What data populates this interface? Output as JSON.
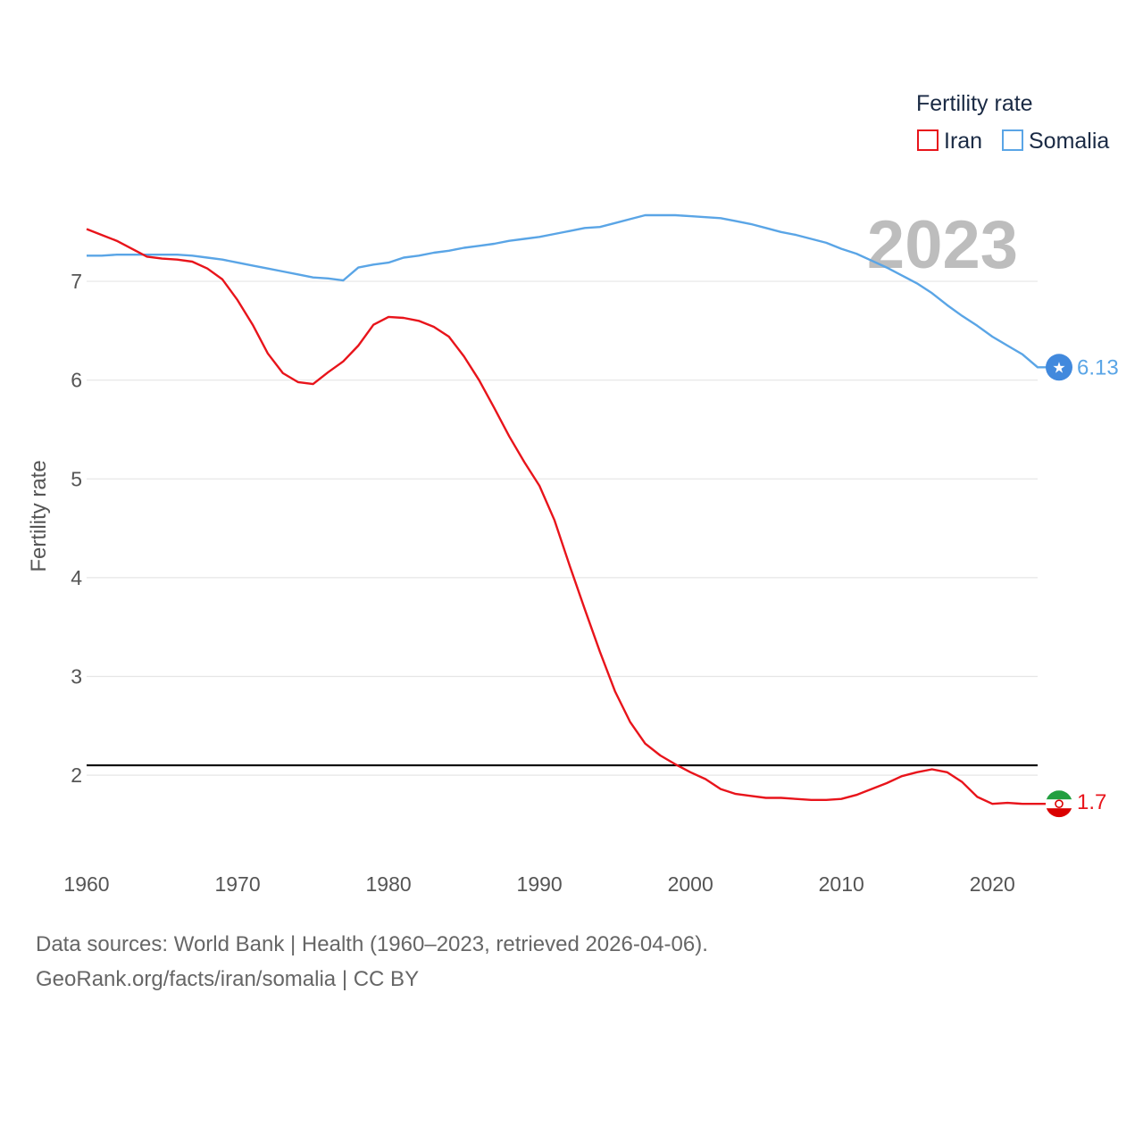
{
  "chart_data": {
    "type": "line",
    "title": "Fertility rate",
    "ylabel": "Fertility rate",
    "xlabel": "",
    "year_label": "2023",
    "xlim": [
      1960,
      2023
    ],
    "ylim": [
      1.35,
      7.95
    ],
    "x_ticks": [
      1960,
      1970,
      1980,
      1990,
      2000,
      2010,
      2020
    ],
    "y_ticks": [
      2,
      3,
      4,
      5,
      6,
      7
    ],
    "reference_line": 2.1,
    "x": [
      1960,
      1961,
      1962,
      1963,
      1964,
      1965,
      1966,
      1967,
      1968,
      1969,
      1970,
      1971,
      1972,
      1973,
      1974,
      1975,
      1976,
      1977,
      1978,
      1979,
      1980,
      1981,
      1982,
      1983,
      1984,
      1985,
      1986,
      1987,
      1988,
      1989,
      1990,
      1991,
      1992,
      1993,
      1994,
      1995,
      1996,
      1997,
      1998,
      1999,
      2000,
      2001,
      2002,
      2003,
      2004,
      2005,
      2006,
      2007,
      2008,
      2009,
      2010,
      2011,
      2012,
      2013,
      2014,
      2015,
      2016,
      2017,
      2018,
      2019,
      2020,
      2021,
      2022,
      2023
    ],
    "series": [
      {
        "name": "Iran",
        "color": "#e8141b",
        "end_label": "1.7",
        "values": [
          7.53,
          7.47,
          7.41,
          7.33,
          7.25,
          7.23,
          7.22,
          7.2,
          7.13,
          7.02,
          6.81,
          6.56,
          6.27,
          6.07,
          5.98,
          5.96,
          6.08,
          6.19,
          6.35,
          6.56,
          6.64,
          6.63,
          6.6,
          6.54,
          6.44,
          6.24,
          6.0,
          5.72,
          5.43,
          5.17,
          4.93,
          4.58,
          4.12,
          3.68,
          3.25,
          2.85,
          2.54,
          2.32,
          2.2,
          2.11,
          2.03,
          1.96,
          1.86,
          1.81,
          1.79,
          1.77,
          1.77,
          1.76,
          1.75,
          1.75,
          1.76,
          1.8,
          1.86,
          1.92,
          1.99,
          2.03,
          2.06,
          2.03,
          1.93,
          1.78,
          1.71,
          1.72,
          1.71,
          1.71
        ]
      },
      {
        "name": "Somalia",
        "color": "#5aa5e6",
        "end_label": "6.13",
        "values": [
          7.26,
          7.26,
          7.27,
          7.27,
          7.27,
          7.27,
          7.27,
          7.26,
          7.24,
          7.22,
          7.19,
          7.16,
          7.13,
          7.1,
          7.07,
          7.04,
          7.03,
          7.01,
          7.14,
          7.17,
          7.19,
          7.24,
          7.26,
          7.29,
          7.31,
          7.34,
          7.36,
          7.38,
          7.41,
          7.43,
          7.45,
          7.48,
          7.51,
          7.54,
          7.55,
          7.59,
          7.63,
          7.67,
          7.67,
          7.67,
          7.66,
          7.65,
          7.64,
          7.61,
          7.58,
          7.54,
          7.5,
          7.47,
          7.43,
          7.39,
          7.33,
          7.28,
          7.21,
          7.14,
          7.06,
          6.98,
          6.88,
          6.76,
          6.65,
          6.55,
          6.44,
          6.35,
          6.26,
          6.13
        ]
      }
    ]
  },
  "legend": {
    "title": "Fertility rate",
    "items": [
      "Iran",
      "Somalia"
    ]
  },
  "icons": {
    "iran": "iran-flag-icon",
    "somalia": "somalia-flag-icon"
  },
  "footer": {
    "line1": "Data sources: World Bank | Health (1960–2023, retrieved 2026-04-06).",
    "line2": "GeoRank.org/facts/iran/somalia | CC BY"
  }
}
